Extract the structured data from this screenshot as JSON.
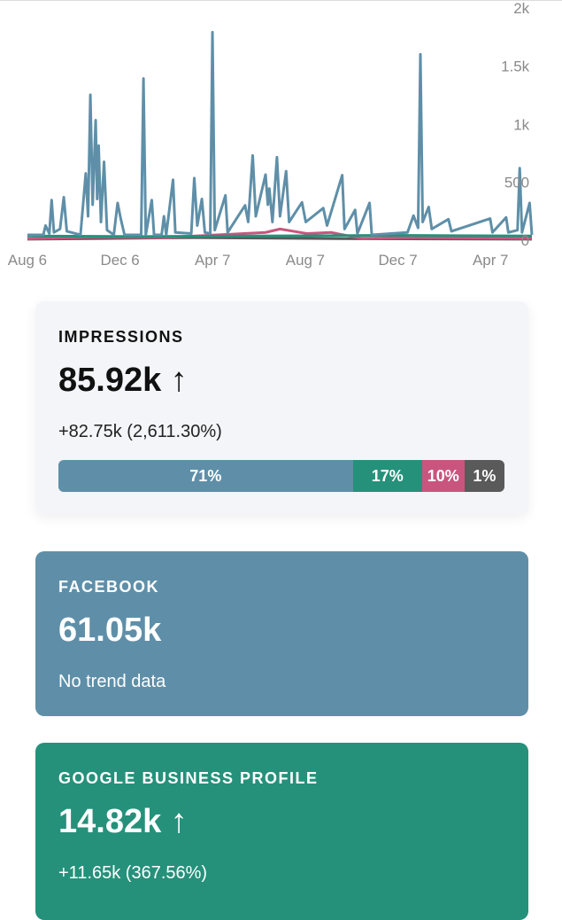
{
  "chart_data": {
    "type": "line",
    "x_tick_labels": [
      "Aug 6",
      "Dec 6",
      "Apr 7",
      "Aug 7",
      "Dec 7",
      "Apr 7"
    ],
    "y_tick_labels": [
      "2k",
      "1.5k",
      "1k",
      "500",
      "0"
    ],
    "ylim": [
      0,
      2000
    ],
    "grid": false,
    "series": [
      {
        "color": "#5f8fa8",
        "points": [
          [
            "Aug 6",
            40
          ],
          [
            "Aug 27",
            40
          ],
          [
            "Aug 30",
            120
          ],
          [
            "Sep 4",
            50
          ],
          [
            "Sep 7",
            340
          ],
          [
            "Sep 10",
            60
          ],
          [
            "Sep 18",
            90
          ],
          [
            "Sep 23",
            365
          ],
          [
            "Sep 27",
            70
          ],
          [
            "Oct 15",
            40
          ],
          [
            "Oct 22",
            570
          ],
          [
            "Oct 25",
            200
          ],
          [
            "Oct 28",
            1250
          ],
          [
            "Oct 31",
            300
          ],
          [
            "Nov 4",
            1030
          ],
          [
            "Nov 6",
            350
          ],
          [
            "Nov 8",
            810
          ],
          [
            "Nov 11",
            150
          ],
          [
            "Nov 15",
            670
          ],
          [
            "Nov 19",
            80
          ],
          [
            "Nov 28",
            40
          ],
          [
            "Dec 3",
            315
          ],
          [
            "Dec 7",
            180
          ],
          [
            "Dec 12",
            40
          ],
          [
            "Jan 3",
            40
          ],
          [
            "Jan 6",
            1390
          ],
          [
            "Jan 9",
            40
          ],
          [
            "Jan 17",
            340
          ],
          [
            "Jan 20",
            40
          ],
          [
            "Jan 30",
            40
          ],
          [
            "Feb 2",
            200
          ],
          [
            "Feb 5",
            40
          ],
          [
            "Feb 14",
            515
          ],
          [
            "Feb 17",
            60
          ],
          [
            "Mar 10",
            50
          ],
          [
            "Mar 14",
            530
          ],
          [
            "Mar 18",
            120
          ],
          [
            "Mar 24",
            350
          ],
          [
            "Mar 28",
            60
          ],
          [
            "Apr 4",
            50
          ],
          [
            "Apr 7",
            1790
          ],
          [
            "Apr 10",
            80
          ],
          [
            "Apr 24",
            380
          ],
          [
            "Apr 27",
            60
          ],
          [
            "May 20",
            295
          ],
          [
            "May 24",
            150
          ],
          [
            "May 30",
            725
          ],
          [
            "Jun 3",
            200
          ],
          [
            "Jun 16",
            560
          ],
          [
            "Jun 19",
            300
          ],
          [
            "Jun 21",
            440
          ],
          [
            "Jun 25",
            150
          ],
          [
            "Jul 1",
            710
          ],
          [
            "Jul 5",
            200
          ],
          [
            "Jul 13",
            590
          ],
          [
            "Jul 17",
            150
          ],
          [
            "Aug 3",
            320
          ],
          [
            "Aug 8",
            150
          ],
          [
            "Aug 31",
            270
          ],
          [
            "Sep 5",
            120
          ],
          [
            "Sep 25",
            555
          ],
          [
            "Sep 28",
            90
          ],
          [
            "Oct 12",
            255
          ],
          [
            "Oct 15",
            50
          ],
          [
            "Oct 31",
            315
          ],
          [
            "Nov 3",
            40
          ],
          [
            "Dec 20",
            60
          ],
          [
            "Dec 28",
            205
          ],
          [
            "Jan 3",
            100
          ],
          [
            "Jan 6",
            1600
          ],
          [
            "Jan 9",
            150
          ],
          [
            "Jan 17",
            280
          ],
          [
            "Jan 21",
            90
          ],
          [
            "Feb 12",
            175
          ],
          [
            "Feb 16",
            70
          ],
          [
            "Apr 8",
            180
          ],
          [
            "Apr 11",
            60
          ],
          [
            "Apr 29",
            190
          ],
          [
            "May 2",
            60
          ],
          [
            "May 14",
            80
          ],
          [
            "May 17",
            615
          ],
          [
            "May 20",
            60
          ],
          [
            "May 30",
            315
          ],
          [
            "Jun 2",
            40
          ]
        ]
      },
      {
        "color": "#25917a",
        "points": [
          [
            "Aug 6",
            30
          ],
          [
            "Jan 1",
            25
          ],
          [
            "Jun 1",
            30
          ],
          [
            "Dec 1",
            35
          ],
          [
            "Jun 2",
            30
          ]
        ]
      },
      {
        "color": "#c9557e",
        "points": [
          [
            "Aug 6",
            5
          ],
          [
            "Nov 1",
            20
          ],
          [
            "Feb 1",
            15
          ],
          [
            "Jun 16",
            60
          ],
          [
            "Jul 5",
            90
          ],
          [
            "Aug 10",
            50
          ],
          [
            "Sep 10",
            60
          ],
          [
            "Oct 20",
            10
          ],
          [
            "Jan 1",
            15
          ],
          [
            "Jun 2",
            10
          ]
        ]
      },
      {
        "color": "#5a5a5a",
        "points": [
          [
            "Aug 6",
            2
          ],
          [
            "Mar 14",
            15
          ],
          [
            "Jul 20",
            10
          ],
          [
            "Oct 20",
            5
          ],
          [
            "Jun 2",
            2
          ]
        ]
      }
    ]
  },
  "impressions": {
    "label": "IMPRESSIONS",
    "value": "85.92k",
    "trend_icon": "arrow-up",
    "trend_symbol": "↑",
    "change": "+82.75k (2,611.30%)",
    "breakdown": [
      {
        "label": "71%",
        "percent": 71,
        "color": "#5f8fa8"
      },
      {
        "label": "17%",
        "percent": 17,
        "color": "#25917a"
      },
      {
        "label": "10%",
        "percent": 10,
        "color": "#c9557e"
      },
      {
        "label": "1%",
        "percent": 1,
        "color": "#5a5a5a"
      }
    ]
  },
  "facebook": {
    "label": "FACEBOOK",
    "value": "61.05k",
    "change": "No trend data",
    "color": "#5f8fa8"
  },
  "google": {
    "label": "GOOGLE BUSINESS PROFILE",
    "value": "14.82k",
    "trend_symbol": "↑",
    "change": "+11.65k (367.56%)",
    "color": "#25917a"
  }
}
